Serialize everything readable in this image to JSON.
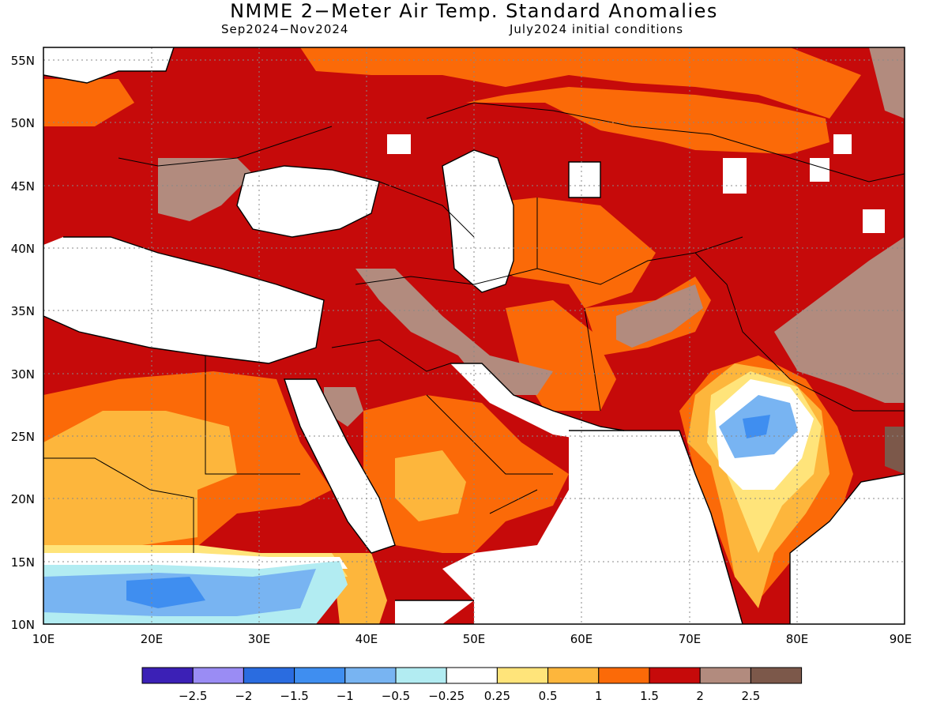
{
  "title": "NMME 2−Meter Air Temp. Standard Anomalies",
  "subtitle_left": "Sep2024−Nov2024",
  "subtitle_right": "July2024 initial conditions",
  "map": {
    "region": "Middle East / South Asia",
    "lon_range": [
      10,
      90
    ],
    "lat_range": [
      10,
      56
    ],
    "lon_ticks": [
      "10E",
      "20E",
      "30E",
      "40E",
      "50E",
      "60E",
      "70E",
      "80E",
      "90E"
    ],
    "lat_ticks": [
      "10N",
      "15N",
      "20N",
      "25N",
      "30N",
      "35N",
      "40N",
      "45N",
      "50N",
      "55N"
    ],
    "grid": "dotted"
  },
  "colorbar": {
    "colors": [
      "#3b20b6",
      "#9a8cf4",
      "#2a6ce0",
      "#3f8ef0",
      "#78b4f2",
      "#b2ecf2",
      "#ffffff",
      "#ffe47a",
      "#fdb63c",
      "#fb6a08",
      "#c60a0a",
      "#b28b7e",
      "#7c584a"
    ],
    "labels": [
      "−2.5",
      "−2",
      "−1.5",
      "−1",
      "−0.5",
      "−0.25",
      "0.25",
      "0.5",
      "1",
      "1.5",
      "2",
      "2.5"
    ]
  }
}
